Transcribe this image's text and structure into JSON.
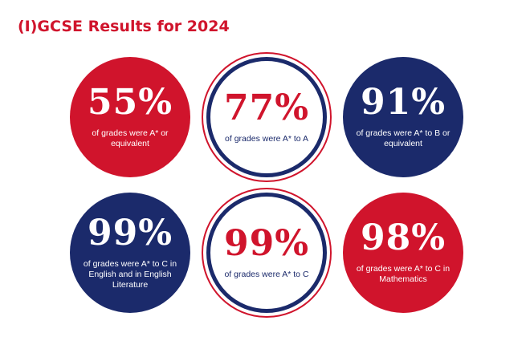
{
  "page": {
    "title": "(I)GCSE Results for 2024"
  },
  "colors": {
    "red": "#d0142c",
    "navy": "#1b2a6b",
    "white": "#ffffff"
  },
  "stats": [
    {
      "value": "55%",
      "description": "of grades were A* or equivalent",
      "style": "filled",
      "fill": "red"
    },
    {
      "value": "77%",
      "description": "of grades were A* to A",
      "style": "outlined",
      "text_color": "red",
      "ring_inner": "navy",
      "ring_outer": "red"
    },
    {
      "value": "91%",
      "description": "of grades were A* to B or equivalent",
      "style": "filled",
      "fill": "navy"
    },
    {
      "value": "99%",
      "description": "of grades were A* to C in English and in English Literature",
      "style": "filled",
      "fill": "navy"
    },
    {
      "value": "99%",
      "description": "of grades were A* to C",
      "style": "outlined",
      "text_color": "red",
      "ring_inner": "navy",
      "ring_outer": "red"
    },
    {
      "value": "98%",
      "description": "of grades were A* to C in Mathematics",
      "style": "filled",
      "fill": "red"
    }
  ]
}
